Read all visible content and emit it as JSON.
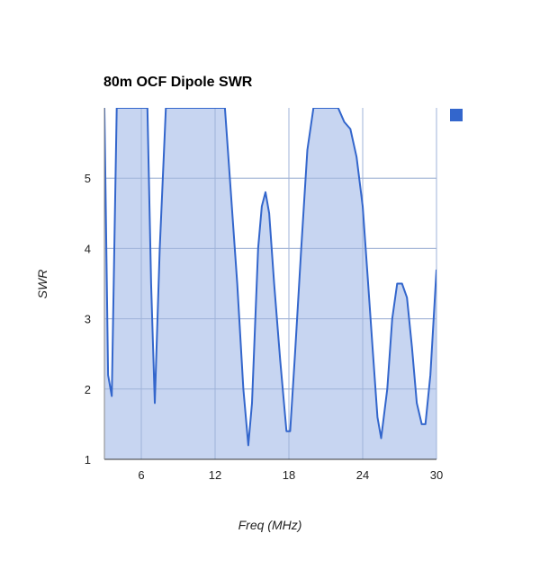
{
  "chart_data": {
    "type": "area",
    "title": "80m OCF Dipole SWR",
    "xlabel": "Freq (MHz)",
    "ylabel": "SWR",
    "xlim": [
      3,
      30
    ],
    "ylim": [
      1,
      6
    ],
    "x_ticks": [
      "6",
      "12",
      "18",
      "24",
      "30"
    ],
    "y_ticks": [
      "1",
      "2",
      "3",
      "4",
      "5"
    ],
    "grid": true,
    "legend": "right",
    "colors": {
      "line": "#3366cc",
      "fill": "#c4d3f0",
      "grid": "#cccccc",
      "legend_swatch": "#3366cc"
    },
    "series": [
      {
        "x": [
          3.0,
          3.3,
          3.6,
          4.0,
          4.2,
          6.5,
          6.8,
          7.1,
          7.5,
          8.0,
          12.8,
          13.2,
          13.8,
          14.3,
          14.7,
          15.0,
          15.5,
          15.8,
          16.1,
          16.4,
          16.8,
          17.3,
          17.8,
          18.1,
          18.5,
          19.0,
          19.5,
          20.0,
          20.5,
          21.0,
          22.0,
          22.5,
          23.0,
          23.5,
          24.0,
          24.4,
          24.8,
          25.2,
          25.5,
          26.0,
          26.4,
          26.8,
          27.2,
          27.6,
          28.0,
          28.4,
          28.8,
          29.1,
          29.5,
          30.0
        ],
        "y": [
          6.0,
          2.2,
          1.9,
          6.0,
          6.0,
          6.0,
          3.5,
          1.8,
          4.0,
          6.0,
          6.0,
          5.0,
          3.5,
          2.0,
          1.2,
          1.8,
          4.0,
          4.6,
          4.8,
          4.5,
          3.5,
          2.4,
          1.4,
          1.4,
          2.5,
          4.0,
          5.4,
          6.0,
          6.0,
          6.0,
          6.0,
          5.8,
          5.7,
          5.3,
          4.6,
          3.6,
          2.6,
          1.6,
          1.3,
          2.0,
          3.0,
          3.5,
          3.5,
          3.3,
          2.6,
          1.8,
          1.5,
          1.5,
          2.2,
          3.7
        ]
      }
    ]
  }
}
